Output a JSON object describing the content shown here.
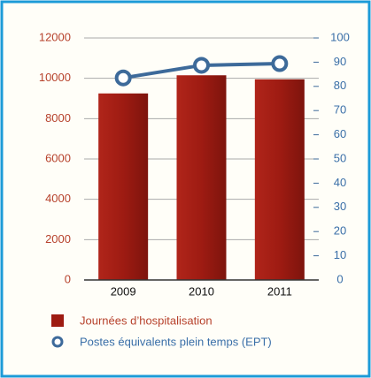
{
  "chart_data": {
    "type": "bar_line",
    "categories": [
      "2009",
      "2010",
      "2011"
    ],
    "series": [
      {
        "name": "Journées d’hospitalisation",
        "type": "bar",
        "color": "#9e1b12",
        "values": [
          9250,
          10150,
          9950
        ]
      },
      {
        "name": "Postes équivalents plein temps (EPT)",
        "type": "line",
        "axis": "y2",
        "color": "#3d6a9a",
        "values": [
          83.5,
          88.7,
          89.4
        ]
      }
    ],
    "ylim": [
      0,
      12000
    ],
    "yticks": [
      0,
      2000,
      4000,
      6000,
      8000,
      10000,
      12000
    ],
    "y2lim": [
      0,
      100
    ],
    "y2ticks": [
      0,
      10,
      20,
      30,
      40,
      50,
      60,
      70,
      80,
      90,
      100
    ],
    "grid": true,
    "legend": "bottom"
  }
}
